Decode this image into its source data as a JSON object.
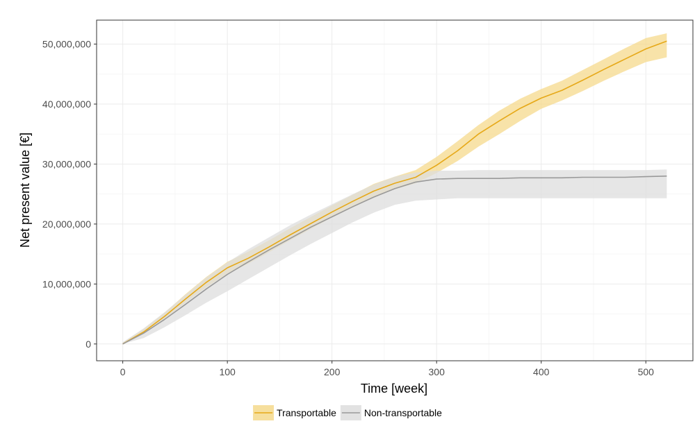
{
  "chart_data": {
    "type": "line",
    "title": "",
    "xlabel": "Time [week]",
    "ylabel": "Net present value [€]",
    "xlim": [
      -25,
      545
    ],
    "ylim": [
      -2800000,
      54000000
    ],
    "x_ticks": [
      0,
      100,
      200,
      300,
      400,
      500
    ],
    "x_tick_labels": [
      "0",
      "100",
      "200",
      "300",
      "400",
      "500"
    ],
    "y_ticks": [
      0,
      10000000,
      20000000,
      30000000,
      40000000,
      50000000
    ],
    "y_tick_labels": [
      "0",
      "10,000,000",
      "20,000,000",
      "30,000,000",
      "40,000,000",
      "50,000,000"
    ],
    "grid": true,
    "legend_position": "bottom",
    "series": [
      {
        "name": "Transportable",
        "color": "#e6a817",
        "band_color": "#f5d98c",
        "x": [
          0,
          20,
          40,
          60,
          80,
          100,
          120,
          140,
          160,
          180,
          200,
          220,
          240,
          260,
          280,
          300,
          320,
          340,
          360,
          380,
          400,
          420,
          440,
          460,
          480,
          500,
          520
        ],
        "y": [
          0,
          2000000,
          4600000,
          7500000,
          10300000,
          12700000,
          14300000,
          16200000,
          18200000,
          20100000,
          22000000,
          23800000,
          25500000,
          26800000,
          27800000,
          29800000,
          32200000,
          35000000,
          37200000,
          39300000,
          41000000,
          42300000,
          44000000,
          45800000,
          47500000,
          49200000,
          50500000
        ],
        "lower": [
          0,
          1700000,
          4200000,
          6900000,
          9500000,
          11700000,
          13400000,
          15300000,
          17300000,
          19200000,
          21100000,
          22800000,
          24400000,
          25800000,
          26800000,
          28500000,
          30500000,
          32900000,
          35000000,
          37200000,
          39200000,
          40600000,
          42200000,
          43900000,
          45500000,
          47000000,
          47800000
        ],
        "upper": [
          200000,
          2500000,
          5200000,
          8300000,
          11200000,
          13700000,
          15400000,
          17300000,
          19300000,
          21200000,
          23100000,
          24900000,
          26700000,
          27900000,
          29000000,
          31200000,
          33800000,
          36500000,
          38900000,
          40900000,
          42500000,
          43900000,
          45700000,
          47500000,
          49300000,
          51000000,
          51800000
        ]
      },
      {
        "name": "Non-transportable",
        "color": "#999999",
        "band_color": "#dddddd",
        "x": [
          0,
          20,
          40,
          60,
          80,
          100,
          120,
          140,
          160,
          180,
          200,
          220,
          240,
          260,
          280,
          300,
          320,
          340,
          360,
          380,
          400,
          420,
          440,
          460,
          480,
          500,
          520
        ],
        "y": [
          0,
          1800000,
          4100000,
          6600000,
          9200000,
          11600000,
          13700000,
          15700000,
          17600000,
          19500000,
          21200000,
          22900000,
          24500000,
          25900000,
          27000000,
          27500000,
          27600000,
          27600000,
          27600000,
          27700000,
          27700000,
          27700000,
          27800000,
          27800000,
          27800000,
          27900000,
          28000000
        ],
        "lower": [
          0,
          1000000,
          2800000,
          4800000,
          6900000,
          8800000,
          10800000,
          12800000,
          14800000,
          16700000,
          18500000,
          20300000,
          21900000,
          23200000,
          23900000,
          24100000,
          24300000,
          24300000,
          24300000,
          24300000,
          24300000,
          24300000,
          24300000,
          24300000,
          24300000,
          24300000,
          24300000
        ],
        "upper": [
          300000,
          2600000,
          5300000,
          8200000,
          11100000,
          13600000,
          15800000,
          17800000,
          19800000,
          21600000,
          23300000,
          25000000,
          26600000,
          27900000,
          28600000,
          28900000,
          28900000,
          29000000,
          29000000,
          29000000,
          29000000,
          29000000,
          29000000,
          29000000,
          29000000,
          29000000,
          29100000
        ]
      }
    ]
  }
}
